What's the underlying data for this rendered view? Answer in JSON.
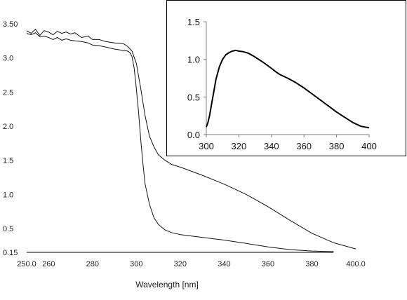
{
  "chart_data": [
    {
      "type": "line",
      "title": "",
      "xlabel": "Wavelength  [nm]",
      "ylabel": "",
      "xlim": [
        250,
        400
      ],
      "ylim": [
        0.15,
        3.5
      ],
      "grid": false,
      "x_ticks": [
        {
          "value": 250,
          "label": "250.0"
        },
        {
          "value": 260,
          "label": "260"
        },
        {
          "value": 280,
          "label": "280"
        },
        {
          "value": 300,
          "label": "300"
        },
        {
          "value": 320,
          "label": "320"
        },
        {
          "value": 340,
          "label": "340"
        },
        {
          "value": 360,
          "label": "360"
        },
        {
          "value": 380,
          "label": "380"
        },
        {
          "value": 400,
          "label": "400.0"
        }
      ],
      "y_ticks": [
        {
          "value": 0.15,
          "label": "0.15"
        },
        {
          "value": 0.5,
          "label": "0.5"
        },
        {
          "value": 1.0,
          "label": "1.0"
        },
        {
          "value": 1.5,
          "label": "1.5"
        },
        {
          "value": 2.0,
          "label": "2.0"
        },
        {
          "value": 2.5,
          "label": "2.5"
        },
        {
          "value": 3.0,
          "label": "3.0"
        },
        {
          "value": 3.5,
          "label": "3.50"
        }
      ],
      "series": [
        {
          "x": [
            250,
            252,
            254,
            256,
            258,
            260,
            262,
            264,
            266,
            268,
            270,
            272,
            275,
            278,
            280,
            283,
            286,
            290,
            294,
            296,
            298,
            300,
            302,
            304,
            306,
            308,
            310,
            313,
            316,
            320,
            330,
            340,
            350,
            360,
            370,
            380,
            390,
            400
          ],
          "y": [
            3.4,
            3.36,
            3.42,
            3.33,
            3.4,
            3.38,
            3.34,
            3.39,
            3.36,
            3.38,
            3.35,
            3.37,
            3.3,
            3.32,
            3.27,
            3.27,
            3.24,
            3.22,
            3.21,
            3.17,
            3.1,
            2.92,
            2.55,
            2.15,
            1.85,
            1.7,
            1.58,
            1.5,
            1.44,
            1.4,
            1.28,
            1.15,
            1.0,
            0.82,
            0.62,
            0.43,
            0.29,
            0.2
          ]
        },
        {
          "x": [
            250,
            252,
            254,
            256,
            258,
            260,
            262,
            264,
            266,
            268,
            270,
            272,
            275,
            278,
            280,
            283,
            286,
            290,
            294,
            296,
            297,
            298,
            299,
            300,
            301,
            302,
            303,
            304,
            306,
            308,
            310,
            313,
            316,
            320,
            330,
            340,
            350,
            360,
            370,
            380,
            390
          ],
          "y": [
            3.36,
            3.34,
            3.37,
            3.31,
            3.32,
            3.3,
            3.27,
            3.3,
            3.26,
            3.28,
            3.26,
            3.25,
            3.24,
            3.22,
            3.19,
            3.18,
            3.16,
            3.13,
            3.11,
            3.1,
            3.08,
            3.02,
            2.85,
            2.55,
            2.2,
            1.8,
            1.45,
            1.15,
            0.85,
            0.66,
            0.56,
            0.48,
            0.44,
            0.41,
            0.37,
            0.33,
            0.28,
            0.23,
            0.19,
            0.17,
            0.16
          ]
        }
      ]
    },
    {
      "type": "line",
      "title": "",
      "xlabel": "",
      "ylabel": "",
      "xlim": [
        300,
        400
      ],
      "ylim": [
        0,
        1.5
      ],
      "grid": false,
      "x_ticks": [
        {
          "value": 300,
          "label": "300"
        },
        {
          "value": 320,
          "label": "320"
        },
        {
          "value": 340,
          "label": "340"
        },
        {
          "value": 360,
          "label": "360"
        },
        {
          "value": 380,
          "label": "380"
        },
        {
          "value": 400,
          "label": "400"
        }
      ],
      "y_ticks": [
        {
          "value": 0,
          "label": "0.0"
        },
        {
          "value": 0.5,
          "label": "0.5"
        },
        {
          "value": 1.0,
          "label": "1.0"
        },
        {
          "value": 1.5,
          "label": "1.5"
        }
      ],
      "series": [
        {
          "x": [
            300,
            301,
            302,
            304,
            306,
            308,
            310,
            312,
            314,
            316,
            318,
            320,
            323,
            326,
            330,
            335,
            340,
            343,
            345,
            350,
            355,
            360,
            365,
            370,
            375,
            380,
            385,
            390,
            395,
            400
          ],
          "y": [
            0.1,
            0.16,
            0.25,
            0.5,
            0.74,
            0.9,
            1.0,
            1.06,
            1.09,
            1.11,
            1.12,
            1.11,
            1.1,
            1.08,
            1.03,
            0.96,
            0.88,
            0.83,
            0.8,
            0.75,
            0.69,
            0.62,
            0.54,
            0.46,
            0.38,
            0.3,
            0.23,
            0.16,
            0.11,
            0.09
          ]
        }
      ]
    }
  ]
}
